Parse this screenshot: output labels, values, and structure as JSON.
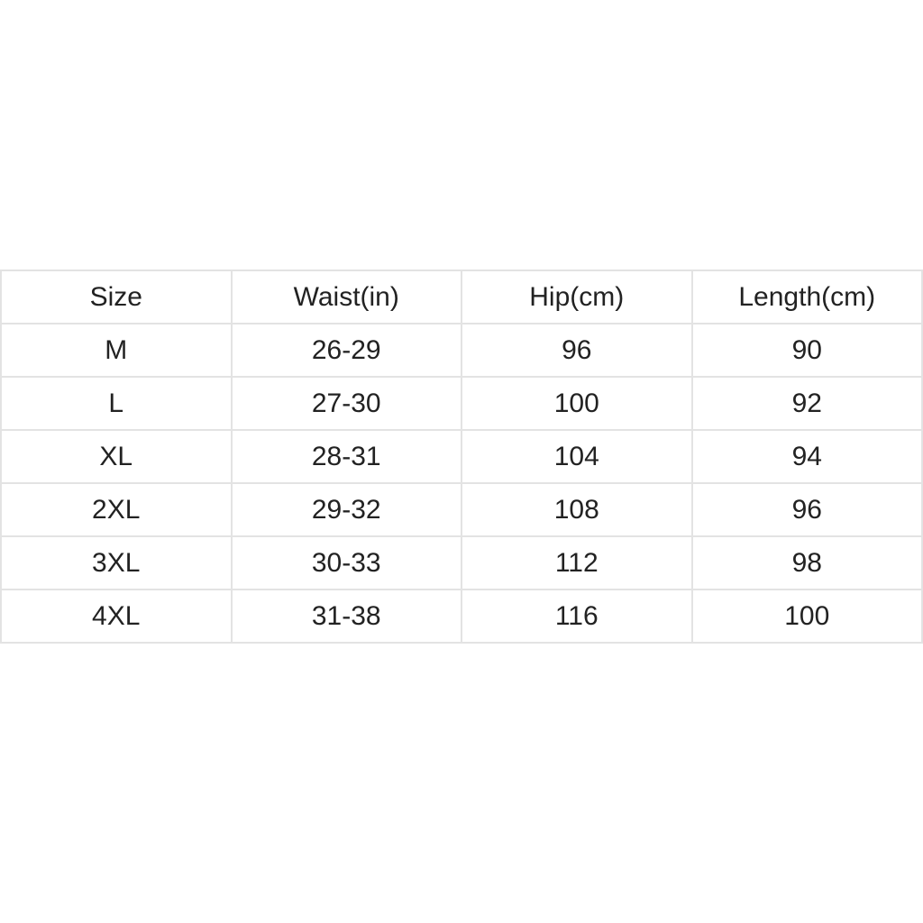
{
  "table": {
    "header": [
      "Size",
      "Waist(in)",
      "Hip(cm)",
      "Length(cm)"
    ],
    "rows": [
      [
        "M",
        "26-29",
        96,
        90
      ],
      [
        "L",
        "27-30",
        100,
        92
      ],
      [
        "XL",
        "28-31",
        104,
        94
      ],
      [
        "2XL",
        "29-32",
        108,
        96
      ],
      [
        "3XL",
        "30-33",
        112,
        98
      ],
      [
        "4XL",
        "31-38",
        116,
        100
      ]
    ]
  }
}
